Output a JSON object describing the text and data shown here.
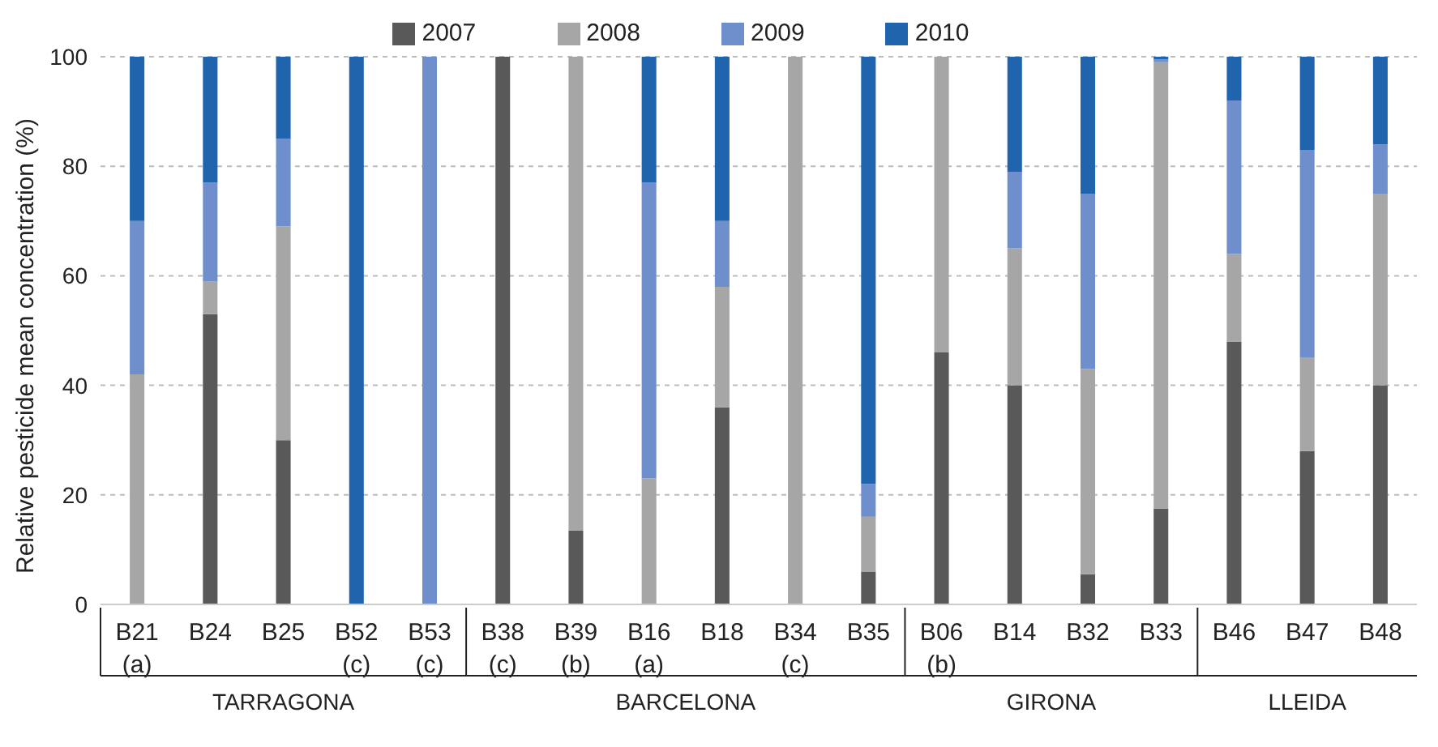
{
  "chart_data": {
    "type": "bar",
    "stacked": true,
    "ylabel": "Relative pesticide mean concentration (%)",
    "categories": [
      "B21 (a)",
      "B24",
      "B25",
      "B52 (c)",
      "B53 (c)",
      "B38 (c)",
      "B39 (b)",
      "B16 (a)",
      "B18",
      "B34 (c)",
      "B35",
      "B06 (b)",
      "B14",
      "B32",
      "B33",
      "B46",
      "B47",
      "B48"
    ],
    "series": [
      {
        "name": "2007",
        "color": "#595959",
        "values": [
          0,
          53,
          30,
          0,
          0,
          100,
          13.5,
          0,
          36,
          0,
          6,
          46,
          40,
          5.5,
          17.5,
          48,
          28,
          40
        ]
      },
      {
        "name": "2008",
        "color": "#a6a6a6",
        "values": [
          42,
          6,
          39,
          0,
          0,
          0,
          86.5,
          23,
          22,
          100,
          10,
          54,
          25,
          37.5,
          81.5,
          16,
          17,
          35
        ]
      },
      {
        "name": "2009",
        "color": "#6f8fcc",
        "values": [
          28,
          18,
          16,
          0,
          100,
          0,
          0,
          54,
          12,
          0,
          6,
          0,
          14,
          32,
          0.5,
          28,
          38,
          9
        ]
      },
      {
        "name": "2010",
        "color": "#1f64ad",
        "values": [
          30,
          23,
          15,
          100,
          0,
          0,
          0,
          23,
          30,
          0,
          78,
          0,
          21,
          25,
          0.5,
          8,
          17,
          16
        ]
      }
    ],
    "ylim": [
      0,
      100
    ],
    "yticks": [
      0,
      20,
      40,
      60,
      80,
      100
    ],
    "grid": "y",
    "legend": "top",
    "annotations": [
      "TARRAGONA",
      "BARCELONA",
      "GIRONA",
      "LLEIDA"
    ]
  }
}
